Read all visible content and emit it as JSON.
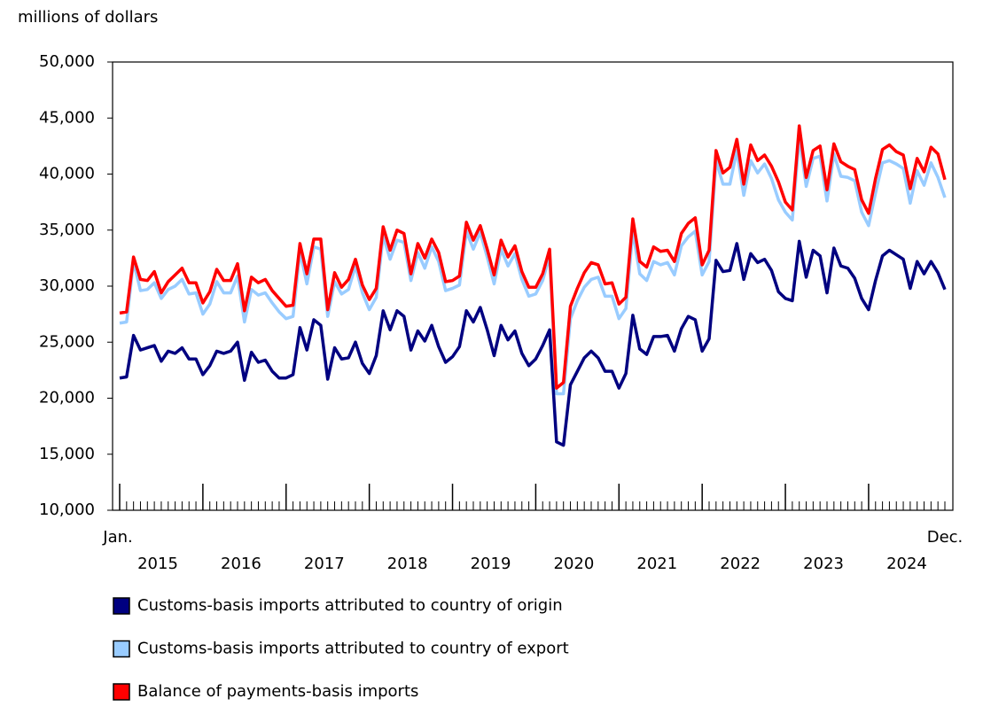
{
  "chart_data": {
    "type": "line",
    "y_axis_label": "millions of dollars",
    "start_label": "Jan.",
    "end_label": "Dec.",
    "years": [
      "2015",
      "2016",
      "2017",
      "2018",
      "2019",
      "2020",
      "2021",
      "2022",
      "2023",
      "2024"
    ],
    "ylim": [
      10000,
      50000
    ],
    "yticks": [
      {
        "value": 10000,
        "label": "10,000"
      },
      {
        "value": 15000,
        "label": "15,000"
      },
      {
        "value": 20000,
        "label": "20,000"
      },
      {
        "value": 25000,
        "label": "25,000"
      },
      {
        "value": 30000,
        "label": "30,000"
      },
      {
        "value": 35000,
        "label": "35,000"
      },
      {
        "value": 40000,
        "label": "40,000"
      },
      {
        "value": 45000,
        "label": "45,000"
      },
      {
        "value": 50000,
        "label": "50,000"
      }
    ],
    "series": [
      {
        "name": "Customs-basis imports attributed to country of origin",
        "color": "#000080",
        "values": [
          21800,
          21900,
          25600,
          24300,
          24500,
          24700,
          23300,
          24200,
          24000,
          24500,
          23500,
          23500,
          22100,
          22900,
          24200,
          24000,
          24200,
          25000,
          21600,
          24100,
          23200,
          23400,
          22400,
          21800,
          21800,
          22100,
          26300,
          24300,
          27000,
          26500,
          21700,
          24500,
          23500,
          23600,
          25000,
          23100,
          22200,
          23800,
          27800,
          26100,
          27800,
          27300,
          24300,
          26000,
          25100,
          26500,
          24600,
          23200,
          23700,
          24600,
          27800,
          26800,
          28100,
          26100,
          23800,
          26500,
          25200,
          26000,
          24000,
          22900,
          23500,
          24700,
          26100,
          16100,
          15800,
          21200,
          22400,
          23600,
          24200,
          23600,
          22400,
          22400,
          20900,
          22200,
          27400,
          24400,
          23900,
          25500,
          25500,
          25600,
          24200,
          26200,
          27300,
          27000,
          24200,
          25300,
          32300,
          31300,
          31400,
          33800,
          30600,
          32900,
          32100,
          32400,
          31400,
          29500,
          28900,
          28700,
          34000,
          30800,
          33200,
          32700,
          29400,
          33400,
          31800,
          31600,
          30700,
          28900,
          27900,
          30500,
          32700,
          33200,
          32800,
          32400,
          29800,
          32200,
          31100,
          32200,
          31200,
          29700
        ]
      },
      {
        "name": "Customs-basis imports attributed to country of export",
        "color": "#99ccff",
        "values": [
          26700,
          26800,
          32200,
          29600,
          29700,
          30300,
          28900,
          29700,
          30000,
          30600,
          29300,
          29400,
          27500,
          28400,
          30400,
          29400,
          29400,
          30900,
          26800,
          29700,
          29200,
          29400,
          28500,
          27700,
          27100,
          27300,
          33100,
          30200,
          33500,
          33300,
          27300,
          30400,
          29300,
          29700,
          31800,
          29400,
          27900,
          29000,
          34500,
          32400,
          34100,
          33900,
          30500,
          33000,
          31600,
          33500,
          32200,
          29600,
          29800,
          30100,
          34900,
          33300,
          34800,
          32600,
          30200,
          33300,
          31800,
          32900,
          30600,
          29100,
          29300,
          30500,
          32700,
          20400,
          20400,
          27100,
          28700,
          29900,
          30600,
          30800,
          29100,
          29100,
          27100,
          28000,
          34900,
          31100,
          30500,
          32200,
          31900,
          32100,
          31000,
          33600,
          34400,
          34900,
          31000,
          32200,
          41200,
          39100,
          39100,
          42100,
          38100,
          41200,
          40100,
          40900,
          39600,
          37700,
          36600,
          35900,
          43300,
          38900,
          41400,
          41600,
          37600,
          41800,
          39800,
          39700,
          39400,
          36600,
          35400,
          38300,
          41000,
          41200,
          40900,
          40500,
          37400,
          40300,
          39000,
          41000,
          39700,
          37900
        ]
      },
      {
        "name": "Balance of payments-basis imports",
        "color": "#ff0000",
        "values": [
          27600,
          27700,
          32600,
          30600,
          30500,
          31300,
          29400,
          30400,
          31000,
          31600,
          30300,
          30300,
          28500,
          29500,
          31500,
          30500,
          30500,
          32000,
          27800,
          30800,
          30300,
          30600,
          29600,
          28900,
          28200,
          28300,
          33800,
          31100,
          34200,
          34200,
          27900,
          31200,
          29900,
          30600,
          32400,
          30100,
          28800,
          29800,
          35300,
          33200,
          35000,
          34700,
          31100,
          33800,
          32500,
          34200,
          33000,
          30400,
          30500,
          30900,
          35700,
          34100,
          35400,
          33300,
          31000,
          34100,
          32600,
          33600,
          31300,
          29900,
          29900,
          31100,
          33300,
          20900,
          21400,
          28200,
          29800,
          31200,
          32100,
          31900,
          30200,
          30300,
          28400,
          29000,
          36000,
          32200,
          31700,
          33500,
          33100,
          33200,
          32200,
          34700,
          35600,
          36100,
          31900,
          33200,
          42100,
          40100,
          40600,
          43100,
          39100,
          42600,
          41200,
          41700,
          40700,
          39300,
          37500,
          36800,
          44300,
          39700,
          42100,
          42500,
          38600,
          42700,
          41100,
          40700,
          40400,
          37700,
          36500,
          39600,
          42200,
          42600,
          42000,
          41700,
          38700,
          41400,
          40200,
          42400,
          41800,
          39500
        ]
      }
    ]
  }
}
